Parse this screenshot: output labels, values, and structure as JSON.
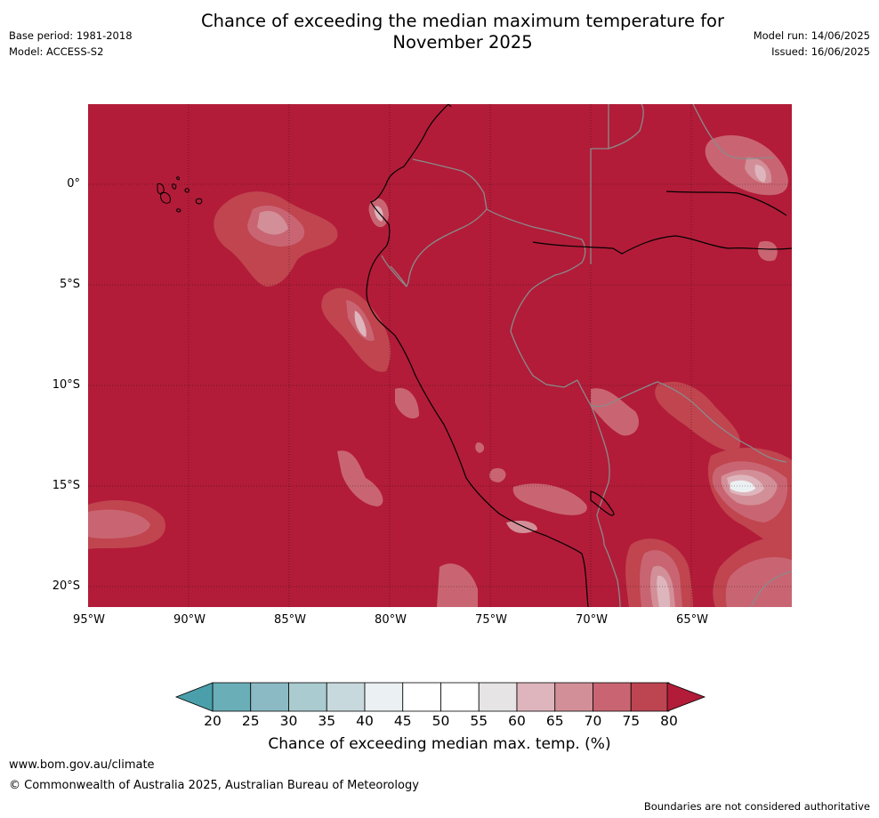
{
  "title_line1": "Chance of exceeding the median maximum temperature for",
  "title_line2": "November 2025",
  "meta_left": {
    "base_period": "Base period: 1981-2018",
    "model": "Model: ACCESS-S2"
  },
  "meta_right": {
    "model_run": "Model run: 14/06/2025",
    "issued": "Issued: 16/06/2025"
  },
  "map": {
    "lat_labels": [
      "0°",
      "5°S",
      "10°S",
      "15°S",
      "20°S"
    ],
    "lon_labels": [
      "95°W",
      "90°W",
      "85°W",
      "80°W",
      "75°W",
      "70°W",
      "65°W"
    ],
    "background_color": "#b21c39",
    "coast_color": "#000000",
    "border_color": "#8a8a8a"
  },
  "colorbar": {
    "labels": [
      "20",
      "25",
      "30",
      "35",
      "40",
      "45",
      "50",
      "55",
      "60",
      "65",
      "70",
      "75",
      "80"
    ],
    "colors": [
      "#6aaeb8",
      "#8bbac5",
      "#aacbd0",
      "#c8d9dd",
      "#ebf0f2",
      "#ffffff",
      "#ffffff",
      "#e6e4e5",
      "#deb5bc",
      "#d38f98",
      "#c96572",
      "#bd4552"
    ],
    "low_extend_color": "#4a9faa",
    "high_extend_color": "#b21c39",
    "title": "Chance of exceeding median max. temp. (%)"
  },
  "footer": {
    "url": "www.bom.gov.au/climate",
    "copyright": "© Commonwealth of Australia 2025, Australian Bureau of Meteorology",
    "note": "Boundaries are not considered authoritative"
  }
}
